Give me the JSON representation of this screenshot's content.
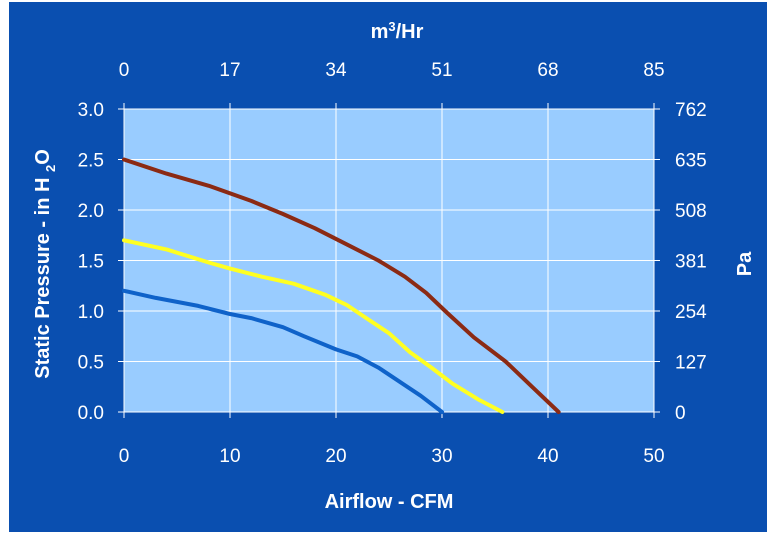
{
  "chart_data": {
    "type": "line",
    "xlabel": "Airflow - CFM",
    "ylabel": "Static Pressure - in H 2O",
    "x2label": "m³/Hr",
    "y2label": "Pa",
    "xlim": [
      0,
      50
    ],
    "ylim": [
      0,
      3.0
    ],
    "x_ticks": [
      "0",
      "10",
      "20",
      "30",
      "40",
      "50"
    ],
    "y_ticks": [
      "0.0",
      "0.5",
      "1.0",
      "1.5",
      "2.0",
      "2.5",
      "3.0"
    ],
    "x2_ticks": [
      "0",
      "17",
      "34",
      "51",
      "68",
      "85"
    ],
    "y2_ticks": [
      "0",
      "127",
      "254",
      "381",
      "508",
      "635",
      "762"
    ],
    "grid": true,
    "colors": {
      "background": "#0a4fb0",
      "plot_area": "#99ccff",
      "grid": "#ffffff"
    },
    "series": [
      {
        "color": "#8b2a14",
        "x": [
          0,
          4,
          8,
          12,
          15,
          18,
          21,
          24,
          26.5,
          28.5,
          30.5,
          33,
          36,
          38.5,
          41
        ],
        "y": [
          2.5,
          2.36,
          2.24,
          2.09,
          1.96,
          1.82,
          1.66,
          1.5,
          1.34,
          1.18,
          0.98,
          0.74,
          0.5,
          0.25,
          0.0
        ]
      },
      {
        "color": "#ffff22",
        "x": [
          0,
          4,
          8,
          10,
          13,
          16,
          19,
          21,
          23,
          25,
          27,
          29,
          31,
          33.5,
          35.7
        ],
        "y": [
          1.7,
          1.61,
          1.48,
          1.42,
          1.34,
          1.27,
          1.16,
          1.06,
          0.92,
          0.78,
          0.59,
          0.44,
          0.28,
          0.12,
          0.0
        ]
      },
      {
        "color": "#0f62c9",
        "x": [
          0,
          3,
          7,
          10,
          12,
          15,
          17,
          20,
          22,
          24,
          26,
          28,
          30
        ],
        "y": [
          1.2,
          1.13,
          1.05,
          0.97,
          0.93,
          0.84,
          0.75,
          0.62,
          0.55,
          0.44,
          0.3,
          0.16,
          0.0
        ]
      }
    ]
  }
}
